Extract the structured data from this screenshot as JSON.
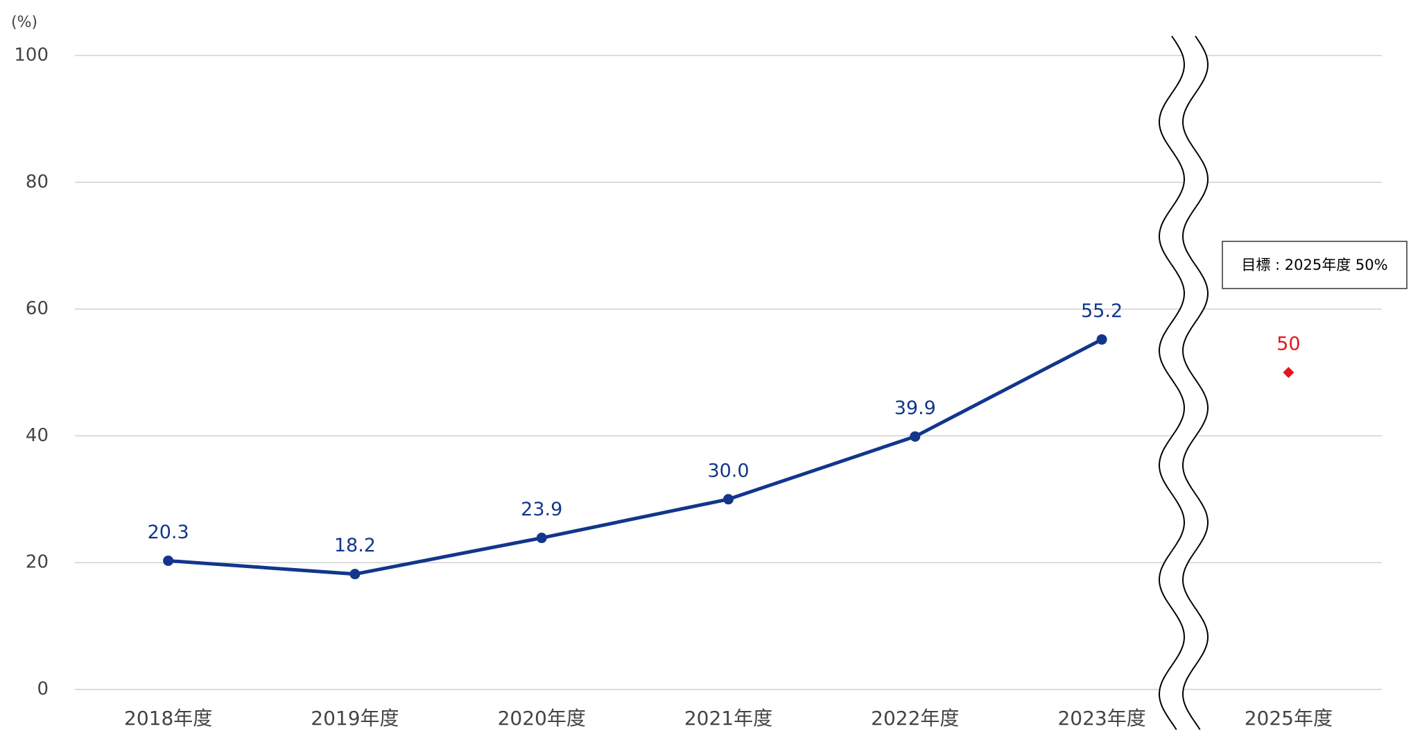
{
  "chart_data": {
    "type": "line",
    "y_axis_label": "(%)",
    "annotation": "目標 : 2025年度 50%",
    "categories": [
      "2018年度",
      "2019年度",
      "2020年度",
      "2021年度",
      "2022年度",
      "2023年度",
      "2025年度"
    ],
    "series": [
      {
        "color": "#12368c",
        "marker": "circle",
        "values": [
          20.3,
          18.2,
          23.9,
          30.0,
          39.9,
          55.2,
          null
        ],
        "value_labels": [
          "20.3",
          "18.2",
          "23.9",
          "30.0",
          "39.9",
          "55.2",
          null
        ]
      },
      {
        "color": "#e8141c",
        "marker": "diamond",
        "values": [
          null,
          null,
          null,
          null,
          null,
          null,
          50
        ],
        "value_labels": [
          null,
          null,
          null,
          null,
          null,
          null,
          "50"
        ]
      }
    ],
    "ylim": [
      0,
      100
    ],
    "yticks": [
      0,
      20,
      40,
      60,
      80,
      100
    ],
    "grid": true
  }
}
